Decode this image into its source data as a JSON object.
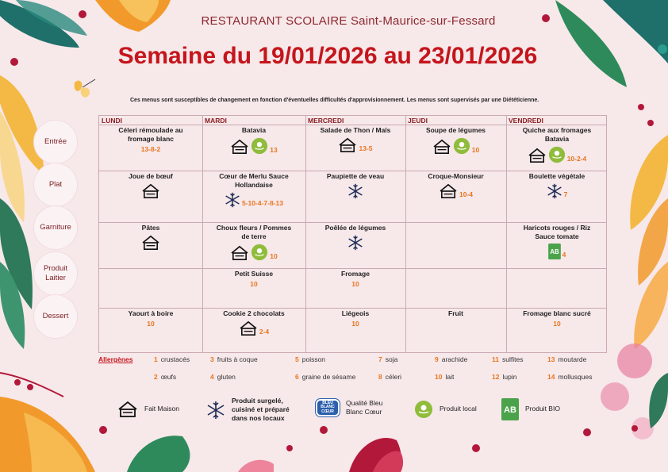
{
  "header": {
    "school": "RESTAURANT SCOLAIRE Saint-Maurice-sur-Fessard",
    "week": "Semaine du 19/01/2026 au 23/01/2026",
    "disclaimer": "Ces menus sont susceptibles de changement en fonction d'éventuelles difficultés d'approvisionnement. Les menus sont supervisés par une Diététicienne."
  },
  "rows": [
    {
      "label": "Entrée"
    },
    {
      "label": "Plat"
    },
    {
      "label": "Garniture"
    },
    {
      "label": "Produit Laitier"
    },
    {
      "label": "Dessert"
    }
  ],
  "days": [
    "LUNDI",
    "MARDI",
    "MERCREDI",
    "JEUDI",
    "VENDREDI"
  ],
  "menu": {
    "entree": [
      {
        "name": "Céleri rémoulade au fromage blanc",
        "allergens": "13-8-2",
        "icons": []
      },
      {
        "name": "Batavia",
        "allergens": "13",
        "icons": [
          "fait-maison",
          "local"
        ]
      },
      {
        "name": "Salade de Thon / Maïs",
        "allergens": "13-5",
        "icons": [
          "fait-maison"
        ]
      },
      {
        "name": "Soupe de légumes",
        "allergens": "10",
        "icons": [
          "fait-maison",
          "local"
        ]
      },
      {
        "name": "Quiche aux fromages Batavia",
        "allergens": "10-2-4",
        "icons": [
          "fait-maison",
          "local"
        ]
      }
    ],
    "plat": [
      {
        "name": "Joue de bœuf",
        "allergens": "",
        "icons": [
          "fait-maison"
        ]
      },
      {
        "name": "Cœur de Merlu Sauce Hollandaise",
        "allergens": "5-10-4-7-8-13",
        "icons": [
          "surgele"
        ]
      },
      {
        "name": "Paupiette de veau",
        "allergens": "",
        "icons": [
          "surgele"
        ]
      },
      {
        "name": "Croque-Monsieur",
        "allergens": "10-4",
        "icons": [
          "fait-maison"
        ]
      },
      {
        "name": "Boulette végétale",
        "allergens": "7",
        "icons": [
          "surgele"
        ]
      }
    ],
    "garniture": [
      {
        "name": "Pâtes",
        "allergens": "",
        "icons": [
          "fait-maison"
        ]
      },
      {
        "name": "Choux fleurs / Pommes de terre",
        "allergens": "10",
        "icons": [
          "fait-maison",
          "local"
        ]
      },
      {
        "name": "Poêlée de légumes",
        "allergens": "",
        "icons": [
          "surgele"
        ]
      },
      {
        "name": "",
        "allergens": "",
        "icons": []
      },
      {
        "name": "Haricots rouges / Riz Sauce tomate",
        "allergens": "4",
        "icons": [
          "bio"
        ]
      }
    ],
    "laitier": [
      {
        "name": "",
        "allergens": "",
        "icons": []
      },
      {
        "name": "Petit Suisse",
        "allergens": "10",
        "icons": []
      },
      {
        "name": "Fromage",
        "allergens": "10",
        "icons": []
      },
      {
        "name": "",
        "allergens": "",
        "icons": []
      },
      {
        "name": "",
        "allergens": "",
        "icons": []
      }
    ],
    "dessert": [
      {
        "name": "Yaourt à boire",
        "allergens": "10",
        "icons": []
      },
      {
        "name": "Cookie 2 chocolats",
        "allergens": "2-4",
        "icons": [
          "fait-maison"
        ]
      },
      {
        "name": "Liégeois",
        "allergens": "10",
        "icons": []
      },
      {
        "name": "Fruit",
        "allergens": "",
        "icons": []
      },
      {
        "name": "Fromage blanc sucré",
        "allergens": "10",
        "icons": []
      }
    ]
  },
  "allergens": {
    "title": "Allergènes",
    "items": [
      {
        "n": "1",
        "label": "crustacés"
      },
      {
        "n": "2",
        "label": "œufs"
      },
      {
        "n": "3",
        "label": "fruits à coque"
      },
      {
        "n": "4",
        "label": "gluten"
      },
      {
        "n": "5",
        "label": "poisson"
      },
      {
        "n": "6",
        "label": "graine de sésame"
      },
      {
        "n": "7",
        "label": "soja"
      },
      {
        "n": "8",
        "label": "céleri"
      },
      {
        "n": "9",
        "label": "arachide"
      },
      {
        "n": "10",
        "label": "lait"
      },
      {
        "n": "11",
        "label": "sulfites"
      },
      {
        "n": "12",
        "label": "lupin"
      },
      {
        "n": "13",
        "label": "moutarde"
      },
      {
        "n": "14",
        "label": "mollusques"
      }
    ]
  },
  "legend": {
    "fait_maison": "Fait Maison",
    "surgele_1": "Produit surgelé,",
    "surgele_2": "cuisiné et préparé",
    "surgele_3": "dans nos locaux",
    "bleu_1": "Qualité Bleu",
    "bleu_2": "Blanc Cœur",
    "bleu_logo_1": "BLEU",
    "bleu_logo_2": "BLANC",
    "bleu_logo_3": "CŒUR",
    "local": "Produit local",
    "bio": "Produit BIO",
    "bio_logo": "AB"
  },
  "colors": {
    "background": "#f7e8ea",
    "title_red": "#c4161c",
    "header_dark": "#8c2a2f",
    "allergen_orange": "#e8761e",
    "local_green": "#8fbc3a",
    "bio_green": "#4aa34a",
    "bleu_blue": "#2b5fad"
  }
}
